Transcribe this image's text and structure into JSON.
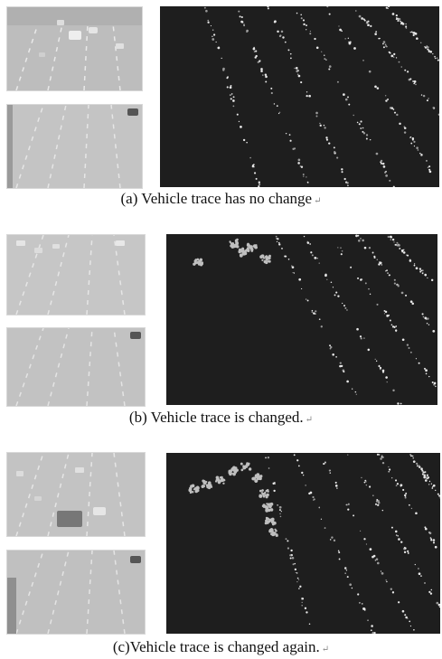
{
  "panels": [
    {
      "id": "a",
      "caption": "(a) Vehicle trace has no change",
      "return_mark": "↵"
    },
    {
      "id": "b",
      "caption": "(b) Vehicle trace is changed.",
      "return_mark": "↵"
    },
    {
      "id": "c",
      "caption": "(c)Vehicle trace is changed again.",
      "return_mark": "↵"
    }
  ]
}
